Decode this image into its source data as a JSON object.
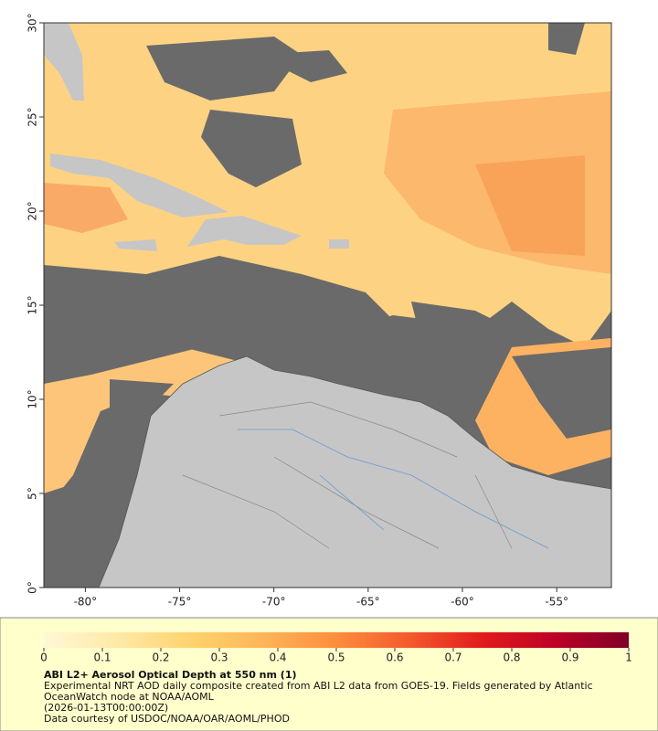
{
  "map": {
    "xlim": [
      -82.2,
      -52.1
    ],
    "ylim": [
      0,
      30
    ],
    "xticks": [
      {
        "value": -80,
        "label": "-80°"
      },
      {
        "value": -75,
        "label": "-75°"
      },
      {
        "value": -70,
        "label": "-70°"
      },
      {
        "value": -65,
        "label": "-65°"
      },
      {
        "value": -60,
        "label": "-60°"
      },
      {
        "value": -55,
        "label": "-55°"
      }
    ],
    "yticks": [
      {
        "value": 0,
        "label": "0°"
      },
      {
        "value": 5,
        "label": "5°"
      },
      {
        "value": 10,
        "label": "10°"
      },
      {
        "value": 15,
        "label": "15°"
      },
      {
        "value": 20,
        "label": "20°"
      },
      {
        "value": 25,
        "label": "25°"
      },
      {
        "value": 30,
        "label": "30°"
      }
    ]
  },
  "colorbar": {
    "clim": [
      0,
      1
    ],
    "ticks": [
      0,
      0.1,
      0.2,
      0.3,
      0.4,
      0.5,
      0.6,
      0.7,
      0.8,
      0.9,
      1
    ],
    "colors": [
      "#fff7d6",
      "#ffe9a8",
      "#fed36e",
      "#fdb55a",
      "#fd8d3c",
      "#f45a2c",
      "#e31a1c",
      "#bd0026",
      "#800026"
    ]
  },
  "caption": {
    "title": "ABI L2+ Aerosol Optical Depth at 550 nm (1)",
    "description": "Experimental NRT AOD daily composite created from ABI L2 data from GOES-19. Fields generated by Atlantic OceanWatch node at NOAA/AOML",
    "timestamp": "(2026-01-13T00:00:00Z)",
    "credit": "Data courtesy of USDOC/NOAA/OAR/AOML/PHOD"
  }
}
